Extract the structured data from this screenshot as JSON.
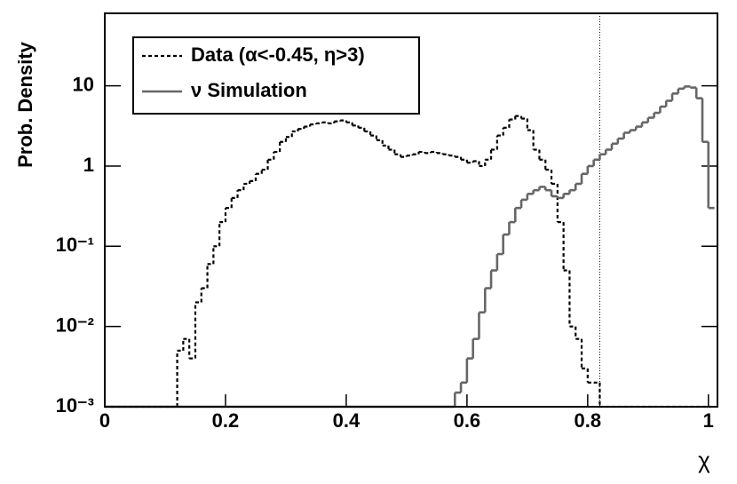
{
  "chart_data": {
    "type": "histogram",
    "ylabel": "Prob. Density",
    "xlabel": "χ",
    "log_y": true,
    "xlim": [
      0,
      1.015
    ],
    "ylim": [
      0.001,
      80
    ],
    "xticks": [
      0,
      0.2,
      0.4,
      0.6,
      0.8,
      1
    ],
    "yticks": [
      {
        "value": 0.001,
        "label": "10⁻³"
      },
      {
        "value": 0.01,
        "label": "10⁻²"
      },
      {
        "value": 0.1,
        "label": "10⁻¹"
      },
      1,
      10
    ],
    "vline": 0.82,
    "legend": "upper left",
    "bins": [
      0,
      0.01,
      0.02,
      0.03,
      0.04,
      0.05,
      0.06,
      0.07,
      0.08,
      0.09,
      0.1,
      0.11,
      0.12,
      0.13,
      0.14,
      0.15,
      0.16,
      0.17,
      0.18,
      0.19,
      0.2,
      0.21,
      0.22,
      0.23,
      0.24,
      0.25,
      0.26,
      0.27,
      0.28,
      0.29,
      0.3,
      0.31,
      0.32,
      0.33,
      0.34,
      0.35,
      0.36,
      0.37,
      0.38,
      0.39,
      0.4,
      0.41,
      0.42,
      0.43,
      0.44,
      0.45,
      0.46,
      0.47,
      0.48,
      0.49,
      0.5,
      0.51,
      0.52,
      0.53,
      0.54,
      0.55,
      0.56,
      0.57,
      0.58,
      0.59,
      0.6,
      0.61,
      0.62,
      0.63,
      0.64,
      0.65,
      0.66,
      0.67,
      0.68,
      0.69,
      0.7,
      0.71,
      0.72,
      0.73,
      0.74,
      0.75,
      0.76,
      0.77,
      0.78,
      0.79,
      0.8,
      0.81,
      0.82,
      0.83,
      0.84,
      0.85,
      0.86,
      0.87,
      0.88,
      0.89,
      0.9,
      0.91,
      0.92,
      0.93,
      0.94,
      0.95,
      0.96,
      0.97,
      0.98,
      0.99,
      1,
      1.01
    ],
    "series": [
      {
        "name": "Data (α<-0.45,  η>3)",
        "color": "#000000",
        "style": "dashed",
        "values": [
          0,
          0,
          0,
          0,
          0,
          0,
          0,
          0,
          0,
          0,
          0,
          0,
          0.005,
          0.007,
          0.004,
          0.02,
          0.03,
          0.06,
          0.1,
          0.2,
          0.3,
          0.4,
          0.5,
          0.6,
          0.65,
          0.8,
          0.9,
          1.2,
          1.5,
          2.0,
          2.3,
          2.7,
          2.9,
          3.1,
          3.3,
          3.4,
          3.5,
          3.4,
          3.6,
          3.7,
          3.5,
          3.2,
          3.0,
          2.7,
          2.4,
          2.1,
          1.8,
          1.6,
          1.4,
          1.3,
          1.35,
          1.4,
          1.5,
          1.45,
          1.5,
          1.45,
          1.4,
          1.35,
          1.3,
          1.2,
          1.1,
          1.15,
          1.0,
          1.2,
          1.6,
          2.4,
          3.0,
          3.8,
          4.2,
          3.9,
          2.8,
          1.6,
          1.2,
          0.9,
          0.6,
          0.2,
          0.05,
          0.01,
          0.007,
          0.003,
          0.002,
          0.002,
          0,
          0,
          0,
          0,
          0,
          0,
          0,
          0,
          0,
          0,
          0,
          0,
          0,
          0,
          0,
          0,
          0,
          0,
          0
        ]
      },
      {
        "name": "ν Simulation",
        "color": "#666666",
        "style": "solid",
        "values": [
          0,
          0,
          0,
          0,
          0,
          0,
          0,
          0,
          0,
          0,
          0,
          0,
          0,
          0,
          0,
          0,
          0,
          0,
          0,
          0,
          0,
          0,
          0,
          0,
          0,
          0,
          0,
          0,
          0,
          0,
          0,
          0,
          0,
          0,
          0,
          0,
          0,
          0,
          0,
          0,
          0,
          0,
          0,
          0,
          0,
          0,
          0,
          0,
          0,
          0,
          0,
          0,
          0,
          0,
          0,
          0,
          0,
          0,
          0.0015,
          0.002,
          0.004,
          0.007,
          0.015,
          0.03,
          0.05,
          0.08,
          0.14,
          0.2,
          0.3,
          0.38,
          0.45,
          0.5,
          0.55,
          0.5,
          0.42,
          0.4,
          0.45,
          0.5,
          0.6,
          0.8,
          1.0,
          1.2,
          1.4,
          1.6,
          1.9,
          2.2,
          2.6,
          2.8,
          3.1,
          3.5,
          4.0,
          4.6,
          5.5,
          6.5,
          8.0,
          9.2,
          9.8,
          9.5,
          7.0,
          2.0,
          0.3
        ]
      }
    ]
  }
}
